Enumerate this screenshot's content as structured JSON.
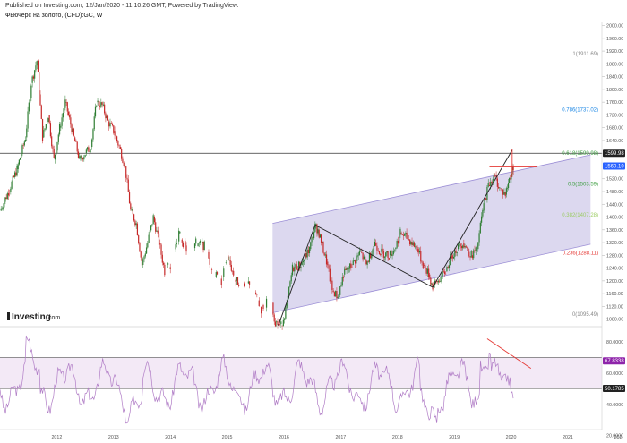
{
  "header": {
    "published": "Published on Investing.com, 12/Jan/2020 - 11:10:26 GMT, Powered by TradingView.",
    "title": "Фьючерс на золото, (CFD):GC, W"
  },
  "logo": {
    "name": "Investing",
    "suffix": ".com"
  },
  "colors": {
    "bull": "#2e7d32",
    "bear": "#c62828",
    "channel_fill": "#d6d1ec",
    "channel_line": "#9c8fd6",
    "rsi_line": "#b07cc6",
    "rsi_band": "#f3e9f6",
    "price_badge": "#2962ff",
    "rsi_badge": "#8e24aa",
    "red_marker": "#e53935"
  },
  "price_axis": {
    "ticks": [
      "2000.00",
      "1960.00",
      "1920.00",
      "1880.00",
      "1840.00",
      "1800.00",
      "1760.00",
      "1720.00",
      "1680.00",
      "1640.00",
      "1600.00",
      "1560.00",
      "1520.00",
      "1480.00",
      "1440.00",
      "1400.00",
      "1360.00",
      "1320.00",
      "1280.00",
      "1240.00",
      "1200.00",
      "1160.00",
      "1120.00",
      "1080.00"
    ],
    "current_price": "1560.10",
    "hline_price": "1599.98",
    "range": [
      1065,
      2010
    ]
  },
  "rsi_axis": {
    "ticks": [
      "80.0000",
      "60.0000",
      "40.0000",
      "20.0000"
    ],
    "current_value": "67.8338",
    "lower_line_value": "50.1785",
    "range": [
      25,
      88
    ]
  },
  "time_axis": {
    "ticks": [
      "2012",
      "2013",
      "2014",
      "2015",
      "2016",
      "2017",
      "2018",
      "2019",
      "2020",
      "2021",
      "202"
    ]
  },
  "fib_levels": [
    {
      "ratio": 1,
      "price": 1911.69,
      "label": "1(1911.69)",
      "color": "#888888"
    },
    {
      "ratio": 0.786,
      "price": 1737.02,
      "label": "0.786(1737.02)",
      "color": "#1e88e5"
    },
    {
      "ratio": 0.618,
      "price": 1599.98,
      "label": "0.618(1599.98)",
      "color": "#43a047"
    },
    {
      "ratio": 0.5,
      "price": 1503.59,
      "label": "0.5(1503.59)",
      "color": "#43a047"
    },
    {
      "ratio": 0.382,
      "price": 1407.28,
      "label": "0.382(1407.28)",
      "color": "#9ccc65"
    },
    {
      "ratio": 0.236,
      "price": 1288.11,
      "label": "0.236(1288.11)",
      "color": "#e53935"
    },
    {
      "ratio": 0,
      "price": 1095.49,
      "label": "0(1095.49)",
      "color": "#888888"
    }
  ],
  "chart_data": {
    "type": "line",
    "title": "Фьючерс на золото, (CFD):GC, W",
    "xlabel": "",
    "ylabel": "",
    "x_range": [
      2011.0,
      2021.6
    ],
    "ylim": [
      1065,
      2010
    ],
    "series": [
      {
        "values": [
          [
            2011.0,
            1420
          ],
          [
            2011.15,
            1480
          ],
          [
            2011.3,
            1550
          ],
          [
            2011.45,
            1650
          ],
          [
            2011.55,
            1820
          ],
          [
            2011.65,
            1890
          ],
          [
            2011.75,
            1650
          ],
          [
            2011.85,
            1720
          ],
          [
            2011.95,
            1580
          ],
          [
            2012.05,
            1680
          ],
          [
            2012.15,
            1760
          ],
          [
            2012.3,
            1650
          ],
          [
            2012.4,
            1580
          ],
          [
            2012.5,
            1600
          ],
          [
            2012.6,
            1620
          ],
          [
            2012.7,
            1760
          ],
          [
            2012.8,
            1750
          ],
          [
            2012.9,
            1700
          ],
          [
            2013.0,
            1670
          ],
          [
            2013.1,
            1620
          ],
          [
            2013.2,
            1560
          ],
          [
            2013.3,
            1420
          ],
          [
            2013.4,
            1380
          ],
          [
            2013.5,
            1250
          ],
          [
            2013.6,
            1320
          ],
          [
            2013.7,
            1400
          ],
          [
            2013.8,
            1320
          ],
          [
            2013.9,
            1230
          ],
          [
            2014.0,
            1250
          ],
          [
            2014.15,
            1350
          ],
          [
            2014.3,
            1290
          ],
          [
            2014.45,
            1320
          ],
          [
            2014.6,
            1310
          ],
          [
            2014.75,
            1230
          ],
          [
            2014.9,
            1190
          ],
          [
            2015.0,
            1280
          ],
          [
            2015.15,
            1200
          ],
          [
            2015.3,
            1190
          ],
          [
            2015.45,
            1180
          ],
          [
            2015.6,
            1110
          ],
          [
            2015.75,
            1150
          ],
          [
            2015.85,
            1070
          ],
          [
            2015.95,
            1060
          ],
          [
            2016.05,
            1120
          ],
          [
            2016.15,
            1240
          ],
          [
            2016.3,
            1250
          ],
          [
            2016.45,
            1300
          ],
          [
            2016.55,
            1370
          ],
          [
            2016.6,
            1360
          ],
          [
            2016.75,
            1260
          ],
          [
            2016.85,
            1170
          ],
          [
            2016.95,
            1150
          ],
          [
            2017.05,
            1220
          ],
          [
            2017.2,
            1250
          ],
          [
            2017.35,
            1290
          ],
          [
            2017.45,
            1250
          ],
          [
            2017.6,
            1320
          ],
          [
            2017.7,
            1290
          ],
          [
            2017.85,
            1280
          ],
          [
            2017.95,
            1300
          ],
          [
            2018.05,
            1350
          ],
          [
            2018.2,
            1330
          ],
          [
            2018.35,
            1300
          ],
          [
            2018.45,
            1250
          ],
          [
            2018.55,
            1220
          ],
          [
            2018.62,
            1180
          ],
          [
            2018.72,
            1200
          ],
          [
            2018.85,
            1230
          ],
          [
            2018.95,
            1280
          ],
          [
            2019.05,
            1300
          ],
          [
            2019.15,
            1320
          ],
          [
            2019.3,
            1280
          ],
          [
            2019.4,
            1300
          ],
          [
            2019.5,
            1420
          ],
          [
            2019.6,
            1500
          ],
          [
            2019.7,
            1530
          ],
          [
            2019.8,
            1490
          ],
          [
            2019.9,
            1470
          ],
          [
            2019.97,
            1520
          ],
          [
            2020.04,
            1560
          ]
        ]
      }
    ]
  }
}
